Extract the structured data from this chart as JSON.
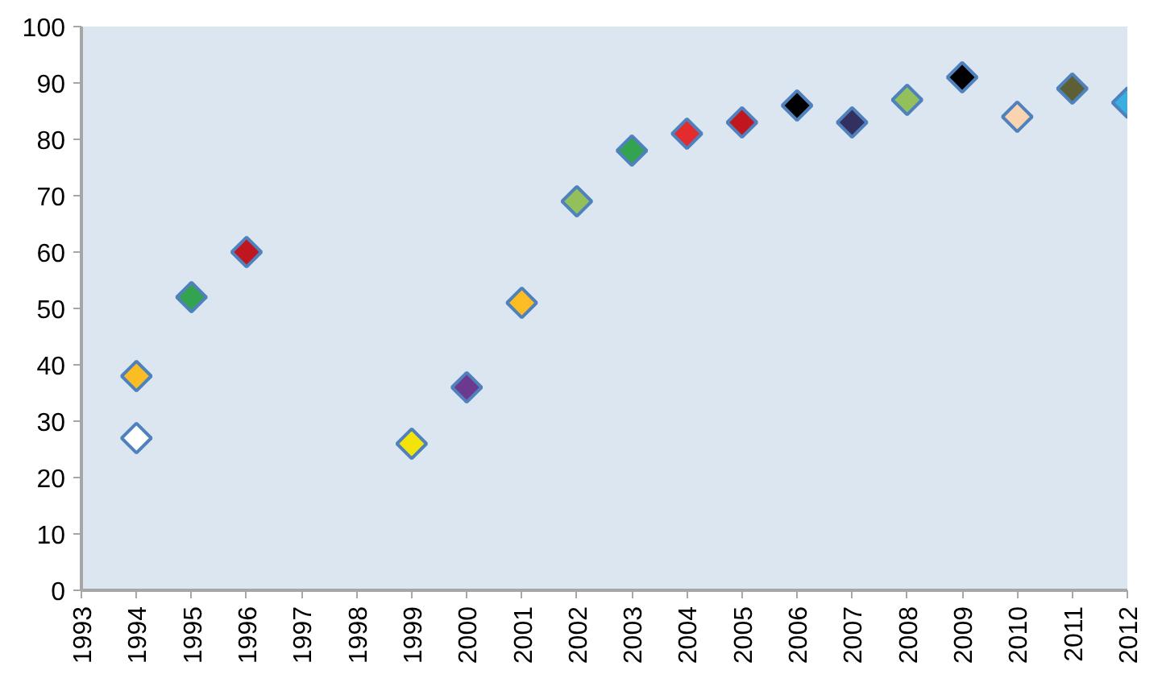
{
  "chart_data": {
    "type": "scatter",
    "marker": "diamond",
    "grid": false,
    "x": [
      1994,
      1994,
      1995,
      1996,
      1999,
      2000,
      2001,
      2002,
      2003,
      2004,
      2005,
      2006,
      2007,
      2008,
      2009,
      2010,
      2011,
      2012
    ],
    "values": [
      38,
      27,
      52,
      60,
      26,
      36,
      51,
      69,
      78,
      81,
      83,
      86,
      83,
      87,
      91,
      84,
      89,
      86.5
    ],
    "colors": [
      "#fbbc24",
      "#ffffff",
      "#33a350",
      "#c0161f",
      "#f2e30a",
      "#6b3a8e",
      "#fbbc24",
      "#93c05a",
      "#33a350",
      "#e42b2d",
      "#c0161f",
      "#000000",
      "#33305f",
      "#93c05a",
      "#000000",
      "#fad4b1",
      "#5d6037",
      "#3aaee0"
    ],
    "xlim": [
      1993,
      2012
    ],
    "xticks": [
      1993,
      1994,
      1995,
      1996,
      1997,
      1998,
      1999,
      2000,
      2001,
      2002,
      2003,
      2004,
      2005,
      2006,
      2007,
      2008,
      2009,
      2010,
      2011,
      2012
    ],
    "ylim": [
      0,
      100
    ],
    "yticks": [
      0,
      10,
      20,
      30,
      40,
      50,
      60,
      70,
      80,
      90,
      100
    ]
  }
}
